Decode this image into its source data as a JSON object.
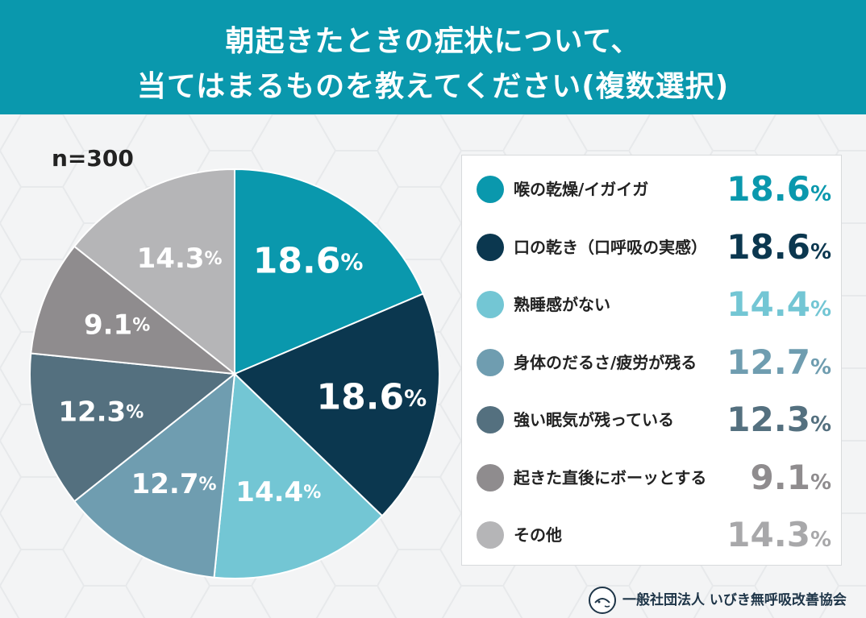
{
  "header": {
    "title_line1": "朝起きたときの症状について、",
    "title_line2": "当てはまるものを教えてください(複数選択)"
  },
  "sample": "n=300",
  "footer": {
    "org": "一般社団法人 いびき無呼吸改善協会"
  },
  "colors": {
    "header_bg": "#0a98ad",
    "series": [
      "#0a98ad",
      "#0b374f",
      "#73c6d4",
      "#6f9db0",
      "#54707f",
      "#8f8c8e",
      "#b5b5b7"
    ],
    "legend_value": [
      "#0a98ad",
      "#0b374f",
      "#73c6d4",
      "#6f9db0",
      "#54707f",
      "#8f8c8e",
      "#a8a8aa"
    ]
  },
  "chart_data": {
    "type": "pie",
    "title": "朝起きたときの症状について、当てはまるものを教えてください(複数選択)",
    "n": 300,
    "unit": "%",
    "categories": [
      "喉の乾燥/イガイガ",
      "口の乾き（口呼吸の実感）",
      "熟睡感がない",
      "身体のだるさ/疲労が残る",
      "強い眠気が残っている",
      "起きた直後にボーッとする",
      "その他"
    ],
    "values": [
      18.6,
      18.6,
      14.4,
      12.7,
      12.3,
      9.1,
      14.3
    ],
    "labels": [
      "18.6",
      "18.6",
      "14.4",
      "12.7",
      "12.3",
      "9.1",
      "14.3"
    ],
    "legend_position": "right"
  }
}
